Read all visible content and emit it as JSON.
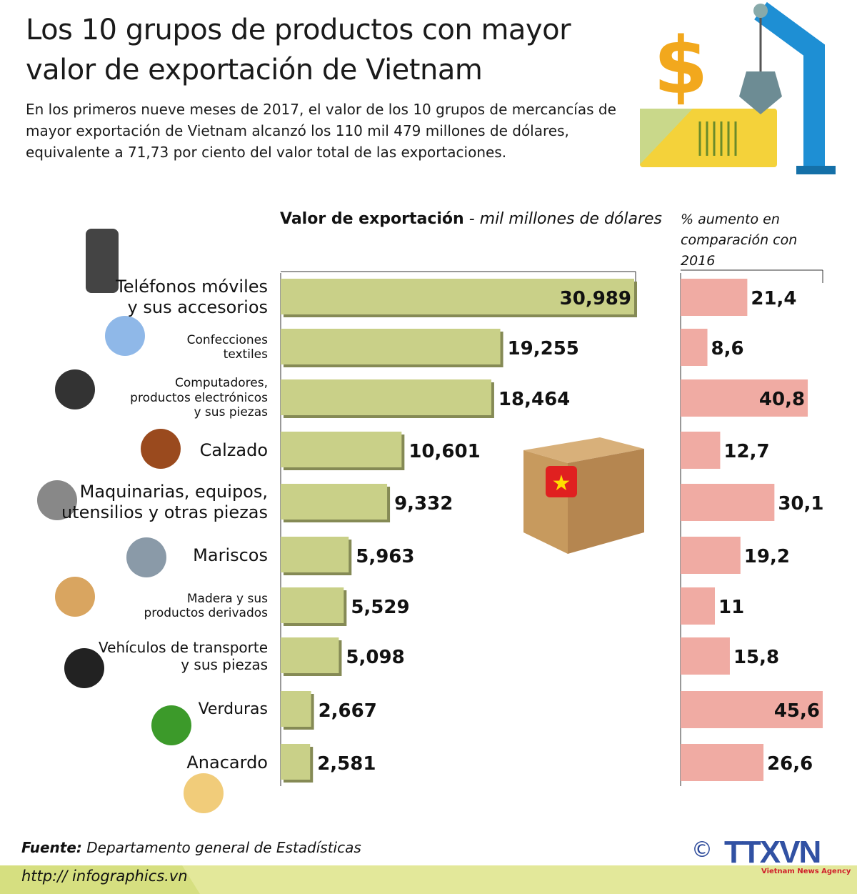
{
  "header": {
    "title": "Los 10 grupos de productos con mayor valor de exportación de Vietnam",
    "subtitle": "En los primeros nueve meses de 2017, el valor de los 10 grupos de mercancías de mayor exportación de Vietnam alcanzó los 110 mil 479 millones de dólares, equivalente a 71,73 por ciento del valor total de las exportaciones."
  },
  "chart_data": [
    {
      "type": "bar",
      "orientation": "horizontal",
      "title_bold": "Valor de exportación",
      "title_rest": " - mil millones de dólares",
      "categories": [
        "Teléfonos móviles y sus accesorios",
        "Confecciones textiles",
        "Computadores, productos electrónicos y sus piezas",
        "Calzado",
        "Maquinarias, equipos, utensilios y otras piezas",
        "Mariscos",
        "Madera y sus productos derivados",
        "Vehículos de transporte y sus piezas",
        "Verduras",
        "Anacardo"
      ],
      "values": [
        30.989,
        19.255,
        18.464,
        10.601,
        9.332,
        5.963,
        5.529,
        5.098,
        2.667,
        2.581
      ],
      "value_labels": [
        "30,989",
        "19,255",
        "18,464",
        "10,601",
        "9,332",
        "5,963",
        "5,529",
        "5,098",
        "2,667",
        "2,581"
      ],
      "color": "#c9d088"
    },
    {
      "type": "bar",
      "orientation": "horizontal",
      "title": "% aumento en comparación con 2016",
      "values": [
        21.4,
        8.6,
        40.8,
        12.7,
        30.1,
        19.2,
        11,
        15.8,
        45.6,
        26.6
      ],
      "value_labels": [
        "21,4",
        "8,6",
        "40,8",
        "12,7",
        "30,1",
        "19,2",
        "11",
        "15,8",
        "45,6",
        "26,6"
      ],
      "color": "#f0aba3"
    }
  ],
  "category_lines": [
    [
      "Teléfonos móviles",
      "y sus accesorios"
    ],
    [
      "Confecciones",
      "textiles"
    ],
    [
      "Computadores,",
      "productos electrónicos",
      "y sus piezas"
    ],
    [
      "Calzado"
    ],
    [
      "Maquinarias, equipos,",
      "utensilios y otras piezas"
    ],
    [
      "Mariscos"
    ],
    [
      "Madera y sus",
      "productos derivados"
    ],
    [
      "Vehículos de transporte",
      "y sus piezas"
    ],
    [
      "Verduras"
    ],
    [
      "Anacardo"
    ]
  ],
  "footer": {
    "source_label": "Fuente:",
    "source": " Departamento general de Estadísticas",
    "url": "http:// infographics.vn",
    "copyright": "©",
    "logo": "TTXVN",
    "logo_sub": "Vietnam News Agency"
  }
}
